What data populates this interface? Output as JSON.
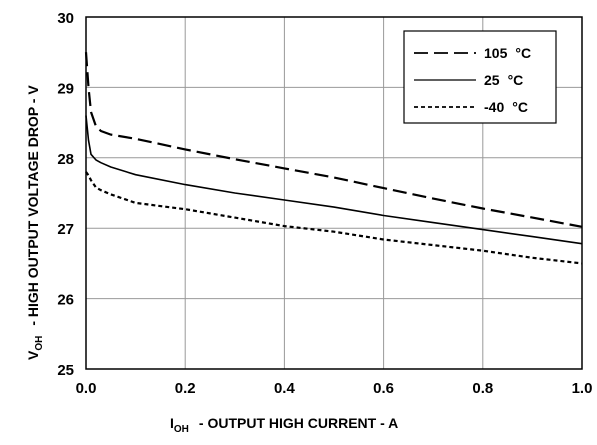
{
  "chart_data": {
    "type": "line",
    "xlabel_main": "I",
    "xlabel_sub": "OH",
    "xlabel_rest": "- OUTPUT HIGH CURRENT - A",
    "ylabel_main": "V",
    "ylabel_sub": "OH",
    "ylabel_rest": "- HIGH OUTPUT VOLTAGE DROP - V",
    "xlim": [
      0,
      1.0
    ],
    "ylim": [
      25,
      30
    ],
    "x_ticks": [
      "0.0",
      "0.2",
      "0.4",
      "0.6",
      "0.8",
      "1.0"
    ],
    "y_ticks": [
      "25",
      "26",
      "27",
      "28",
      "29",
      "30"
    ],
    "grid": true,
    "legend_position": "top-right",
    "series": [
      {
        "name": "105",
        "unit": "°C",
        "line_style": "long-dash",
        "x": [
          0,
          0.005,
          0.01,
          0.02,
          0.03,
          0.05,
          0.1,
          0.2,
          0.3,
          0.4,
          0.5,
          0.6,
          0.7,
          0.8,
          0.9,
          1.0
        ],
        "y": [
          29.5,
          29.0,
          28.65,
          28.45,
          28.38,
          28.33,
          28.27,
          28.12,
          27.98,
          27.85,
          27.72,
          27.57,
          27.42,
          27.28,
          27.15,
          27.02
        ]
      },
      {
        "name": "25",
        "unit": "°C",
        "line_style": "solid",
        "x": [
          0,
          0.005,
          0.01,
          0.02,
          0.03,
          0.05,
          0.1,
          0.2,
          0.3,
          0.4,
          0.5,
          0.6,
          0.7,
          0.8,
          0.9,
          1.0
        ],
        "y": [
          28.6,
          28.25,
          28.05,
          27.97,
          27.93,
          27.87,
          27.76,
          27.62,
          27.5,
          27.4,
          27.3,
          27.18,
          27.08,
          26.98,
          26.88,
          26.78
        ]
      },
      {
        "name": "-40",
        "unit": "°C",
        "line_style": "short-dash",
        "x": [
          0,
          0.005,
          0.01,
          0.02,
          0.03,
          0.05,
          0.1,
          0.2,
          0.3,
          0.4,
          0.5,
          0.6,
          0.7,
          0.8,
          0.9,
          1.0
        ],
        "y": [
          27.8,
          27.75,
          27.68,
          27.58,
          27.54,
          27.48,
          27.36,
          27.27,
          27.15,
          27.03,
          26.95,
          26.84,
          26.76,
          26.68,
          26.58,
          26.5
        ]
      }
    ]
  }
}
